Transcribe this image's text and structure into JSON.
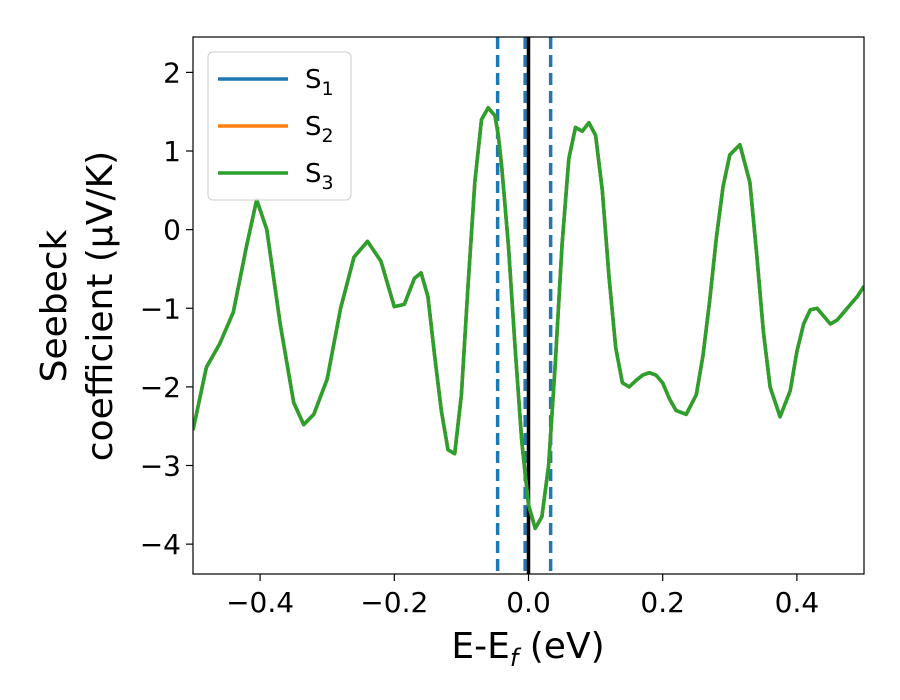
{
  "chart_data": {
    "type": "line",
    "xlabel": "E-E",
    "xlabel_sub": "f",
    "xlabel_unit": " (eV)",
    "ylabel_line1": "Seebeck",
    "ylabel_line2": "coefficient  (μV/K)",
    "xlim": [
      -0.5,
      0.5
    ],
    "ylim": [
      -4.38,
      2.45
    ],
    "xticks": [
      -0.4,
      -0.2,
      0.0,
      0.2,
      0.4
    ],
    "xtick_labels": [
      "−0.4",
      "−0.2",
      "0.0",
      "0.2",
      "0.4"
    ],
    "yticks": [
      -4,
      -3,
      -2,
      -1,
      0,
      1,
      2
    ],
    "ytick_labels": [
      "−4",
      "−3",
      "−2",
      "−1",
      "0",
      "1",
      "2"
    ],
    "grid": false,
    "legend_position": "top-left",
    "vertical_lines": [
      {
        "x": -0.046,
        "style": "dashed",
        "color": "#1f77b4"
      },
      {
        "x": -0.005,
        "style": "dashed",
        "color": "#1f77b4"
      },
      {
        "x": 0.033,
        "style": "dashed",
        "color": "#1f77b4"
      },
      {
        "x": 0.0,
        "style": "solid",
        "color": "#000000"
      }
    ],
    "x": [
      -0.5,
      -0.48,
      -0.46,
      -0.44,
      -0.42,
      -0.405,
      -0.39,
      -0.37,
      -0.35,
      -0.335,
      -0.32,
      -0.3,
      -0.28,
      -0.26,
      -0.24,
      -0.22,
      -0.2,
      -0.185,
      -0.17,
      -0.16,
      -0.15,
      -0.14,
      -0.13,
      -0.12,
      -0.11,
      -0.1,
      -0.09,
      -0.08,
      -0.07,
      -0.06,
      -0.05,
      -0.045,
      -0.04,
      -0.03,
      -0.02,
      -0.01,
      0.0,
      0.01,
      0.02,
      0.03,
      0.04,
      0.05,
      0.06,
      0.07,
      0.08,
      0.09,
      0.1,
      0.11,
      0.12,
      0.13,
      0.14,
      0.15,
      0.16,
      0.17,
      0.18,
      0.19,
      0.2,
      0.21,
      0.22,
      0.235,
      0.25,
      0.26,
      0.27,
      0.28,
      0.29,
      0.3,
      0.315,
      0.33,
      0.34,
      0.35,
      0.36,
      0.375,
      0.39,
      0.4,
      0.41,
      0.42,
      0.43,
      0.44,
      0.45,
      0.46,
      0.47,
      0.48,
      0.49,
      0.5
    ],
    "series": [
      {
        "name": "S1",
        "color": "#1f77b4",
        "values": [
          -2.55,
          -1.75,
          -1.45,
          -1.05,
          -0.2,
          0.38,
          0.0,
          -1.2,
          -2.2,
          -2.48,
          -2.35,
          -1.9,
          -1.0,
          -0.35,
          -0.15,
          -0.4,
          -0.98,
          -0.95,
          -0.62,
          -0.55,
          -0.85,
          -1.6,
          -2.3,
          -2.8,
          -2.85,
          -2.1,
          -0.7,
          0.6,
          1.4,
          1.55,
          1.45,
          1.2,
          0.8,
          -0.2,
          -1.5,
          -2.7,
          -3.5,
          -3.8,
          -3.65,
          -3.0,
          -1.7,
          -0.2,
          0.9,
          1.3,
          1.25,
          1.36,
          1.2,
          0.5,
          -0.6,
          -1.5,
          -1.95,
          -2.0,
          -1.92,
          -1.85,
          -1.82,
          -1.85,
          -1.95,
          -2.15,
          -2.3,
          -2.35,
          -2.1,
          -1.6,
          -0.9,
          -0.1,
          0.55,
          0.95,
          1.08,
          0.6,
          -0.3,
          -1.3,
          -2.0,
          -2.38,
          -2.05,
          -1.55,
          -1.2,
          -1.02,
          -1.0,
          -1.1,
          -1.2,
          -1.15,
          -1.05,
          -0.95,
          -0.85,
          -0.72
        ]
      },
      {
        "name": "S2",
        "color": "#ff7f0e",
        "values": [
          -2.55,
          -1.75,
          -1.45,
          -1.05,
          -0.2,
          0.38,
          0.0,
          -1.2,
          -2.2,
          -2.48,
          -2.35,
          -1.9,
          -1.0,
          -0.35,
          -0.15,
          -0.4,
          -0.98,
          -0.95,
          -0.62,
          -0.55,
          -0.85,
          -1.6,
          -2.3,
          -2.8,
          -2.85,
          -2.1,
          -0.7,
          0.6,
          1.4,
          1.55,
          1.45,
          1.2,
          0.8,
          -0.2,
          -1.5,
          -2.7,
          -3.5,
          -3.8,
          -3.65,
          -3.0,
          -1.7,
          -0.2,
          0.9,
          1.3,
          1.25,
          1.36,
          1.2,
          0.5,
          -0.6,
          -1.5,
          -1.95,
          -2.0,
          -1.92,
          -1.85,
          -1.82,
          -1.85,
          -1.95,
          -2.15,
          -2.3,
          -2.35,
          -2.1,
          -1.6,
          -0.9,
          -0.1,
          0.55,
          0.95,
          1.08,
          0.6,
          -0.3,
          -1.3,
          -2.0,
          -2.38,
          -2.05,
          -1.55,
          -1.2,
          -1.02,
          -1.0,
          -1.1,
          -1.2,
          -1.15,
          -1.05,
          -0.95,
          -0.85,
          -0.72
        ]
      },
      {
        "name": "S3",
        "color": "#2ca02c",
        "values": [
          -2.55,
          -1.75,
          -1.45,
          -1.05,
          -0.2,
          0.38,
          0.0,
          -1.2,
          -2.2,
          -2.48,
          -2.35,
          -1.9,
          -1.0,
          -0.35,
          -0.15,
          -0.4,
          -0.98,
          -0.95,
          -0.62,
          -0.55,
          -0.85,
          -1.6,
          -2.3,
          -2.8,
          -2.85,
          -2.1,
          -0.7,
          0.6,
          1.4,
          1.55,
          1.45,
          1.2,
          0.8,
          -0.2,
          -1.5,
          -2.7,
          -3.5,
          -3.8,
          -3.65,
          -3.0,
          -1.7,
          -0.2,
          0.9,
          1.3,
          1.25,
          1.36,
          1.2,
          0.5,
          -0.6,
          -1.5,
          -1.95,
          -2.0,
          -1.92,
          -1.85,
          -1.82,
          -1.85,
          -1.95,
          -2.15,
          -2.3,
          -2.35,
          -2.1,
          -1.6,
          -0.9,
          -0.1,
          0.55,
          0.95,
          1.08,
          0.6,
          -0.3,
          -1.3,
          -2.0,
          -2.38,
          -2.05,
          -1.55,
          -1.2,
          -1.02,
          -1.0,
          -1.1,
          -1.2,
          -1.15,
          -1.05,
          -0.95,
          -0.85,
          -0.72
        ]
      }
    ],
    "legend": [
      {
        "base": "S",
        "sub": "1",
        "color": "#1f77b4"
      },
      {
        "base": "S",
        "sub": "2",
        "color": "#ff7f0e"
      },
      {
        "base": "S",
        "sub": "3",
        "color": "#2ca02c"
      }
    ]
  }
}
